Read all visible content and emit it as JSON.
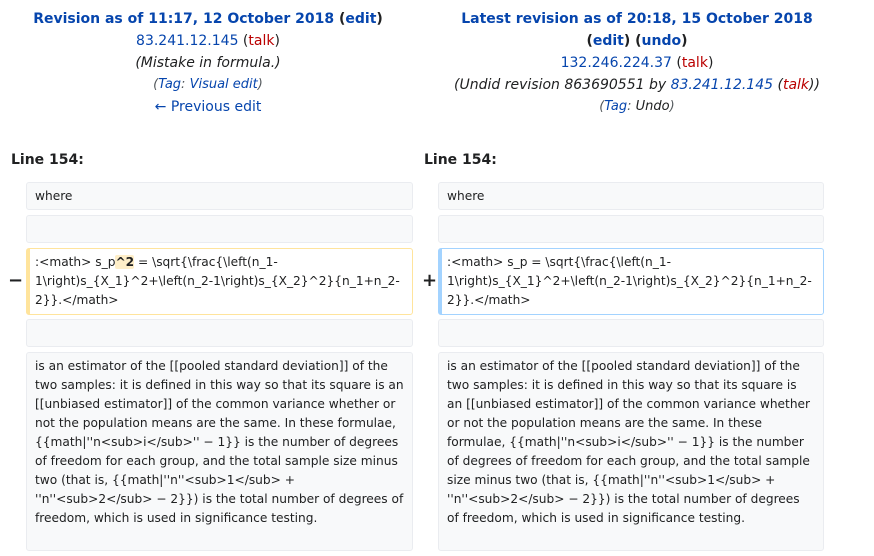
{
  "left_revision": {
    "title_prefix": "Revision as of 11:17, 12 October 2018",
    "edit_label": "edit",
    "ip": "83.241.12.145",
    "talk": "talk",
    "summary": "(Mistake in formula.)",
    "tag_prefix": "(",
    "tag_label": "Tag",
    "tag_sep": ": ",
    "tag_name": "Visual edit",
    "tag_suffix": ")",
    "prev_edit": "← Previous edit"
  },
  "right_revision": {
    "title_prefix": "Latest revision as of 20:18, 15 October 2018",
    "edit_label": "edit",
    "undo_label": "undo",
    "ip": "132.246.224.37",
    "talk": "talk",
    "summary_prefix": "(Undid revision 863690551 by ",
    "summary_ip": "83.241.12.145",
    "summary_talk": "talk",
    "summary_suffix": ")",
    "tag_label": "Tag",
    "tag_name": "Undo"
  },
  "line_number_left": "Line 154:",
  "line_number_right": "Line 154:",
  "diff": {
    "where": "where",
    "deleted_before": ":<math> s_p",
    "deleted_highlight": "^2",
    "deleted_after": " = \\sqrt{\\frac{\\left(n_1-1\\right)s_{X_1}^2+\\left(n_2-1\\right)s_{X_2}^2}{n_1+n_2-2}}.</math>",
    "added_text": ":<math> s_p = \\sqrt{\\frac{\\left(n_1-1\\right)s_{X_1}^2+\\left(n_2-1\\right)s_{X_2}^2}{n_1+n_2-2}}.</math>",
    "minus": "−",
    "plus": "+",
    "paragraph": "is an estimator of the [[pooled standard deviation]] of the two samples: it is defined in this way so that its square is an [[unbiased estimator]] of the common variance whether or not the population means are the same. In these formulae, {{math|''n<sub>i</sub>'' − 1}} is the number of degrees of freedom for each group, and the total sample size minus two (that is, {{math|''n''<sub>1</sub> + ''n''<sub>2</sub> − 2}}) is the total number of degrees of freedom, which is used in significance testing."
  }
}
